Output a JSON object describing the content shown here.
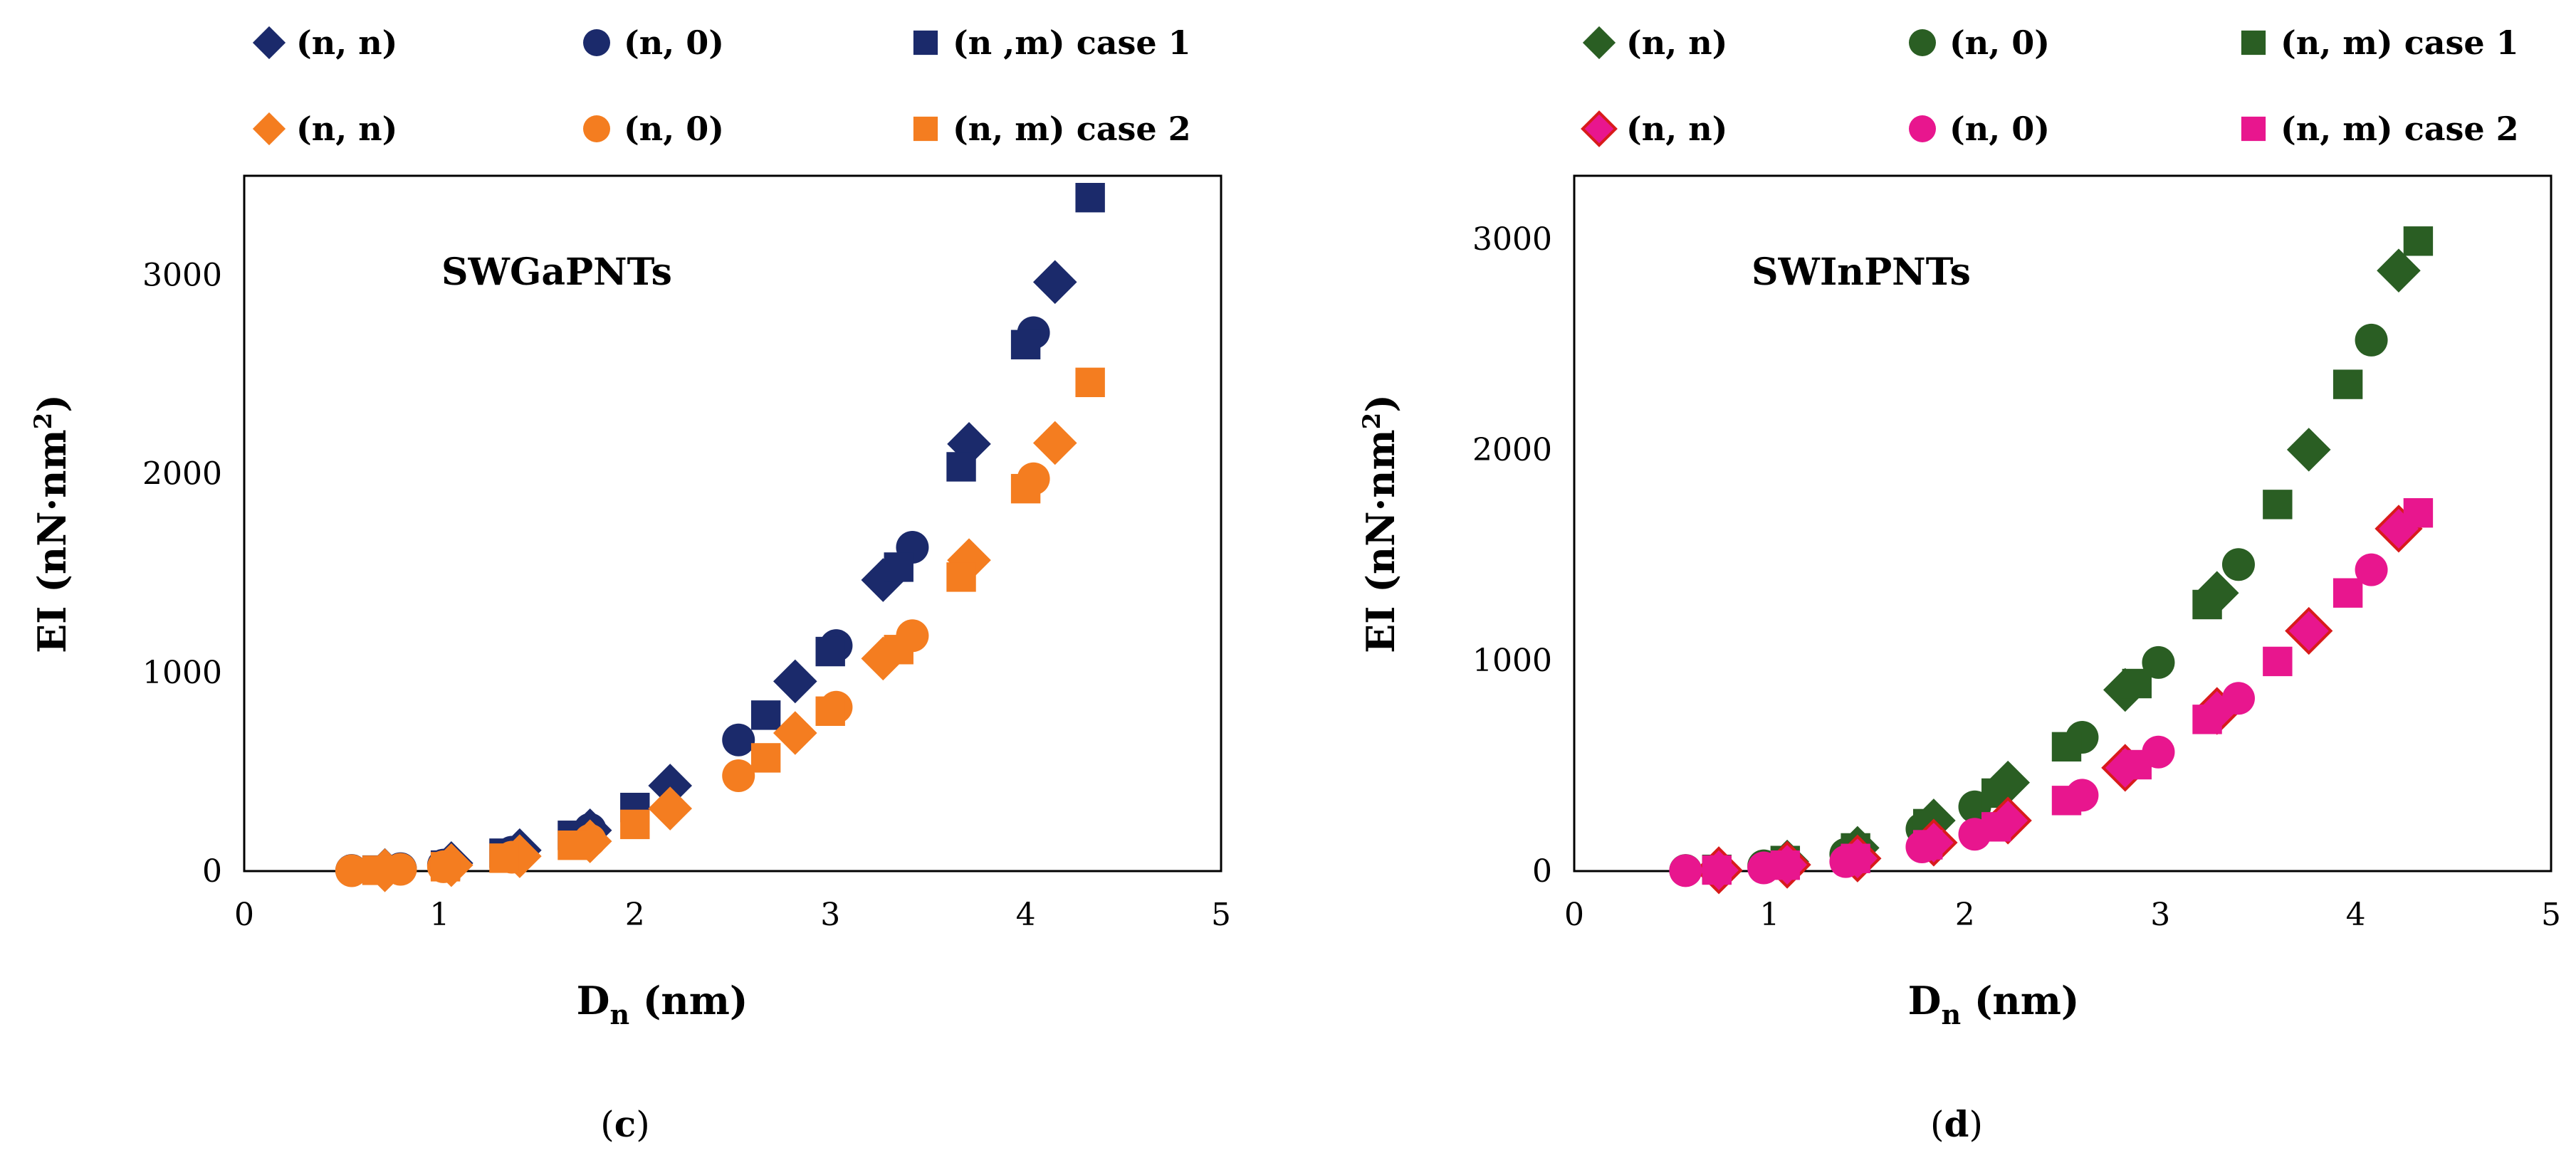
{
  "chart_data": [
    {
      "type": "scatter",
      "title": "SWGaPNTs",
      "panel_label_open": "(",
      "panel_label": "c",
      "panel_label_close": ")",
      "xlabel_main": "D",
      "xlabel_sub": "n",
      "xlabel_rest": " (nm)",
      "ylabel_main": "EI (nN·nm",
      "ylabel_sup": "2",
      "ylabel_close": ")",
      "xlim": [
        0,
        5
      ],
      "ylim": [
        0,
        3500
      ],
      "xticks": [
        "0",
        "1",
        "2",
        "3",
        "4",
        "5"
      ],
      "yticks": [
        "0",
        "1000",
        "2000",
        "3000"
      ],
      "legend": [
        "(n, n)",
        "(n, 0)",
        "(n ,m) case 1",
        "(n, n)",
        "(n, 0)",
        "(n, m) case 2"
      ],
      "series": [
        {
          "name": "(n, n)",
          "group": "case 1",
          "marker": "diamond",
          "color": "#1b2a6b",
          "x": [
            0.72,
            1.06,
            1.41,
            1.77,
            2.18,
            2.82,
            3.27,
            3.71,
            4.15
          ],
          "y": [
            5,
            40,
            105,
            205,
            430,
            955,
            1465,
            2150,
            2965
          ]
        },
        {
          "name": "(n, 0)",
          "group": "case 1",
          "marker": "circle",
          "color": "#1b2a6b",
          "x": [
            0.55,
            0.8,
            1.02,
            1.37,
            1.77,
            2.53,
            3.03,
            3.42,
            4.04
          ],
          "y": [
            3,
            12,
            30,
            95,
            210,
            660,
            1135,
            1630,
            2710
          ]
        },
        {
          "name": "(n ,m) case 1",
          "group": "case 1",
          "marker": "square",
          "color": "#1b2a6b",
          "x": [
            0.68,
            1.03,
            1.33,
            1.68,
            2.0,
            2.67,
            3.0,
            3.35,
            3.67,
            4.0,
            4.33
          ],
          "y": [
            5,
            30,
            90,
            180,
            320,
            785,
            1105,
            1530,
            2035,
            2650,
            3390
          ]
        },
        {
          "name": "(n, n)",
          "group": "case 2",
          "marker": "diamond",
          "color": "#f47d20",
          "x": [
            0.72,
            1.06,
            1.41,
            1.77,
            2.18,
            2.82,
            3.27,
            3.71,
            4.15
          ],
          "y": [
            4,
            30,
            75,
            150,
            315,
            695,
            1070,
            1565,
            2155
          ]
        },
        {
          "name": "(n, 0)",
          "group": "case 2",
          "marker": "circle",
          "color": "#f47d20",
          "x": [
            0.55,
            0.8,
            1.02,
            1.37,
            1.77,
            2.53,
            3.03,
            3.42,
            4.04
          ],
          "y": [
            2,
            9,
            22,
            70,
            155,
            480,
            825,
            1185,
            1975
          ]
        },
        {
          "name": "(n, m) case 2",
          "group": "case 2",
          "marker": "square",
          "color": "#f47d20",
          "x": [
            0.68,
            1.03,
            1.33,
            1.68,
            2.0,
            2.67,
            3.0,
            3.35,
            3.67,
            4.0,
            4.33
          ],
          "y": [
            4,
            22,
            65,
            130,
            235,
            570,
            805,
            1115,
            1480,
            1925,
            2460
          ]
        }
      ]
    },
    {
      "type": "scatter",
      "title": "SWInPNTs",
      "panel_label_open": "(",
      "panel_label": "d",
      "panel_label_close": ")",
      "xlabel_main": "D",
      "xlabel_sub": "n",
      "xlabel_rest": " (nm)",
      "ylabel_main": "EI (nN·nm",
      "ylabel_sup": "2",
      "ylabel_close": ")",
      "xlim": [
        0,
        5
      ],
      "ylim": [
        0,
        3300
      ],
      "xticks": [
        "0",
        "1",
        "2",
        "3",
        "4",
        "5"
      ],
      "yticks": [
        "0",
        "1000",
        "2000",
        "3000"
      ],
      "legend": [
        "(n, n)",
        "(n, 0)",
        "(n, m) case 1",
        "(n, n)",
        "(n, 0)",
        "(n, m) case 2"
      ],
      "series": [
        {
          "name": "(n, n)",
          "group": "case 1",
          "marker": "diamond",
          "color": "#2a5e23",
          "x": [
            0.74,
            1.09,
            1.45,
            1.84,
            2.22,
            2.82,
            3.29,
            3.76,
            4.22
          ],
          "y": [
            6,
            45,
            110,
            240,
            420,
            860,
            1320,
            2000,
            2850
          ]
        },
        {
          "name": "(n, 0)",
          "group": "case 1",
          "marker": "circle",
          "color": "#2a5e23",
          "x": [
            0.57,
            0.97,
            1.39,
            1.78,
            2.05,
            2.6,
            2.99,
            3.4,
            4.08
          ],
          "y": [
            3,
            25,
            80,
            200,
            305,
            635,
            990,
            1455,
            2520
          ]
        },
        {
          "name": "(n, m) case 1",
          "group": "case 1",
          "marker": "square",
          "color": "#2a5e23",
          "x": [
            0.73,
            1.08,
            1.44,
            1.81,
            2.16,
            2.52,
            2.88,
            3.24,
            3.6,
            3.96,
            4.32
          ],
          "y": [
            8,
            50,
            110,
            225,
            370,
            590,
            890,
            1265,
            1740,
            2310,
            2990
          ]
        },
        {
          "name": "(n, n)",
          "group": "case 2",
          "marker": "diamond",
          "color": "#e8168e",
          "x": [
            0.74,
            1.09,
            1.45,
            1.84,
            2.22,
            2.82,
            3.29,
            3.76,
            4.22
          ],
          "y": [
            4,
            30,
            60,
            135,
            240,
            490,
            760,
            1140,
            1625
          ]
        },
        {
          "name": "(n, 0)",
          "group": "case 2",
          "marker": "circle",
          "color": "#e8168e",
          "x": [
            0.57,
            0.97,
            1.39,
            1.78,
            2.05,
            2.6,
            2.99,
            3.4,
            4.08
          ],
          "y": [
            2,
            15,
            45,
            115,
            175,
            360,
            565,
            820,
            1430
          ]
        },
        {
          "name": "(n, m) case 2",
          "group": "case 2",
          "marker": "square",
          "color": "#e8168e",
          "x": [
            0.73,
            1.08,
            1.44,
            1.81,
            2.16,
            2.52,
            2.88,
            3.24,
            3.6,
            3.96,
            4.32
          ],
          "y": [
            5,
            28,
            60,
            125,
            210,
            335,
            505,
            720,
            995,
            1320,
            1700
          ]
        }
      ]
    }
  ]
}
